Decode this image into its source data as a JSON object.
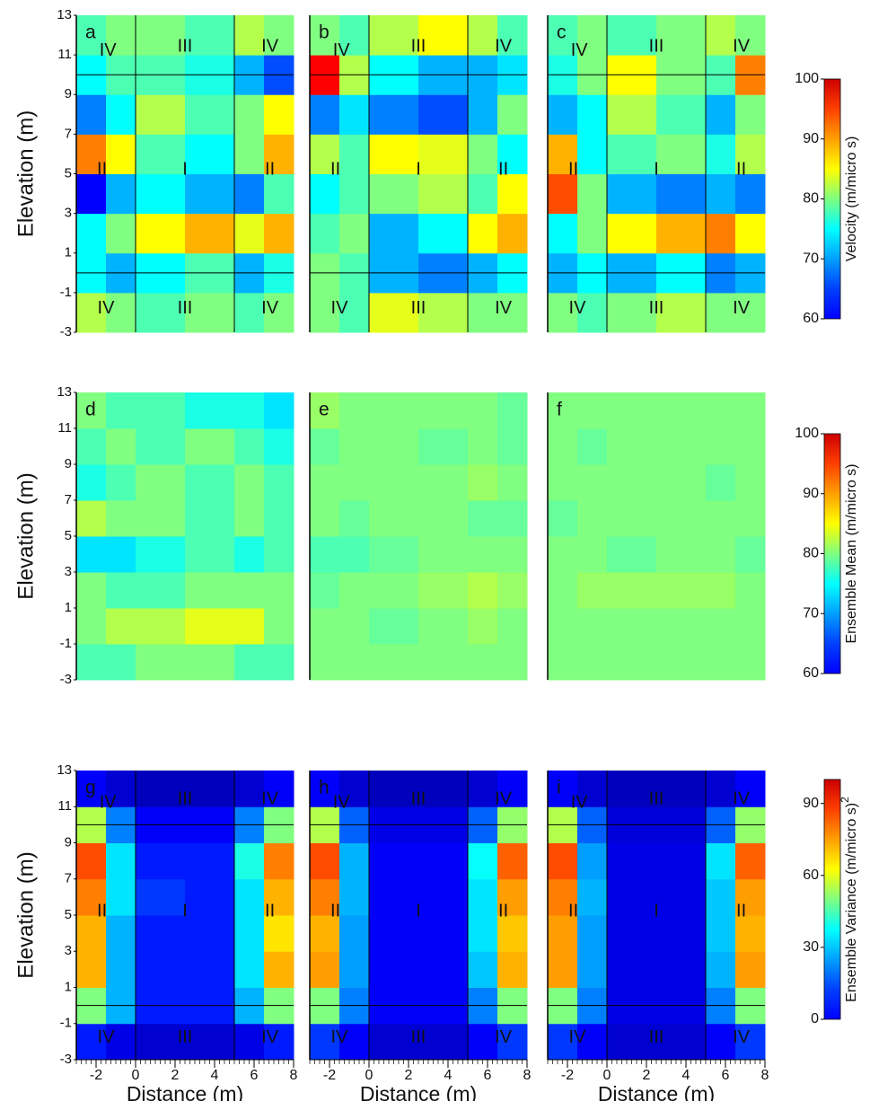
{
  "chart_data": [
    {
      "type": "heatmap",
      "ylabel": "Elevation (m)",
      "xlim": [
        -3,
        8
      ],
      "ylim": [
        -3,
        13
      ],
      "yticks": [
        -3,
        -1,
        1,
        3,
        5,
        7,
        9,
        11,
        13
      ],
      "x_edges": [
        -3,
        -1.5,
        0,
        2.5,
        5,
        6.5,
        8
      ],
      "y_edges": [
        -3,
        -1,
        1,
        3,
        5,
        7,
        9,
        11,
        13
      ],
      "zone_lines": {
        "x": [
          0,
          5
        ],
        "y": [
          0,
          10
        ]
      },
      "zone_labels": [
        {
          "text": "IV",
          "x": -1.4,
          "y": 11.2
        },
        {
          "text": "III",
          "x": 2.5,
          "y": 11.4
        },
        {
          "text": "IV",
          "x": 6.8,
          "y": 11.4
        },
        {
          "text": "II",
          "x": -1.7,
          "y": 5.2
        },
        {
          "text": "I",
          "x": 2.5,
          "y": 5.2
        },
        {
          "text": "II",
          "x": 6.8,
          "y": 5.2
        },
        {
          "text": "IV",
          "x": -1.5,
          "y": -1.8
        },
        {
          "text": "III",
          "x": 2.5,
          "y": -1.8
        },
        {
          "text": "IV",
          "x": 6.8,
          "y": -1.8
        }
      ],
      "colorbar": {
        "label": "Velocity (m/micro s)",
        "lim": [
          60,
          100
        ],
        "ticks": [
          60,
          70,
          80,
          90,
          100
        ]
      },
      "panels": [
        {
          "label": "a",
          "z": [
            [
              82,
              80,
              78,
              80,
              78,
              80
            ],
            [
              75,
              72,
              75,
              78,
              72,
              76
            ],
            [
              75,
              80,
              85,
              88,
              84,
              88
            ],
            [
              65,
              72,
              75,
              72,
              70,
              78
            ],
            [
              90,
              85,
              78,
              75,
              80,
              88
            ],
            [
              70,
              75,
              82,
              78,
              80,
              85
            ],
            [
              75,
              78,
              78,
              76,
              72,
              68
            ],
            [
              78,
              80,
              80,
              78,
              82,
              80
            ]
          ]
        },
        {
          "label": "b",
          "z": [
            [
              80,
              78,
              84,
              82,
              80,
              80
            ],
            [
              80,
              78,
              72,
              70,
              72,
              75
            ],
            [
              78,
              80,
              72,
              75,
              85,
              88
            ],
            [
              75,
              78,
              80,
              82,
              78,
              85
            ],
            [
              82,
              78,
              85,
              84,
              80,
              75
            ],
            [
              70,
              74,
              70,
              68,
              72,
              80
            ],
            [
              95,
              82,
              75,
              72,
              72,
              74
            ],
            [
              80,
              78,
              82,
              85,
              82,
              78
            ]
          ]
        },
        {
          "label": "c",
          "z": [
            [
              80,
              78,
              80,
              82,
              80,
              80
            ],
            [
              72,
              75,
              72,
              75,
              70,
              72
            ],
            [
              75,
              80,
              85,
              88,
              90,
              85
            ],
            [
              92,
              80,
              72,
              70,
              72,
              70
            ],
            [
              88,
              75,
              78,
              80,
              76,
              82
            ],
            [
              72,
              75,
              82,
              78,
              72,
              80
            ],
            [
              76,
              80,
              85,
              80,
              78,
              90
            ],
            [
              78,
              80,
              78,
              80,
              82,
              80
            ]
          ]
        }
      ]
    },
    {
      "type": "heatmap",
      "ylabel": "Elevation (m)",
      "xlim": [
        -3,
        8
      ],
      "ylim": [
        -3,
        13
      ],
      "yticks": [
        -3,
        -1,
        1,
        3,
        5,
        7,
        9,
        11,
        13
      ],
      "x_edges": [
        -3,
        -1.5,
        0,
        2.5,
        5,
        6.5,
        8
      ],
      "y_edges": [
        -3,
        -1,
        1,
        3,
        5,
        7,
        9,
        11,
        13
      ],
      "colorbar": {
        "label": "Ensemble Mean (m/micro s)",
        "lim": [
          60,
          100
        ],
        "ticks": [
          60,
          70,
          80,
          90,
          100
        ]
      },
      "panels": [
        {
          "label": "d",
          "z": [
            [
              78,
              78,
              80,
              80,
              78,
              78
            ],
            [
              80,
              82,
              82,
              84,
              84,
              80
            ],
            [
              80,
              78,
              78,
              80,
              80,
              80
            ],
            [
              74,
              74,
              76,
              78,
              76,
              78
            ],
            [
              82,
              80,
              80,
              78,
              80,
              78
            ],
            [
              76,
              78,
              80,
              78,
              80,
              78
            ],
            [
              78,
              80,
              78,
              80,
              78,
              76
            ],
            [
              80,
              78,
              78,
              76,
              76,
              74
            ]
          ]
        },
        {
          "label": "e",
          "z": [
            [
              80,
              80,
              80,
              80,
              80,
              80
            ],
            [
              80,
              80,
              79,
              80,
              81,
              80
            ],
            [
              79,
              80,
              80,
              81,
              82,
              81
            ],
            [
              78,
              78,
              79,
              80,
              80,
              80
            ],
            [
              80,
              79,
              80,
              80,
              79,
              79
            ],
            [
              80,
              80,
              80,
              80,
              81,
              80
            ],
            [
              79,
              80,
              80,
              79,
              80,
              79
            ],
            [
              81,
              80,
              80,
              80,
              80,
              79
            ]
          ]
        },
        {
          "label": "f",
          "z": [
            [
              80,
              80,
              80,
              80,
              80,
              80
            ],
            [
              80,
              80,
              80,
              80,
              80,
              80
            ],
            [
              80,
              81,
              81,
              81,
              81,
              80
            ],
            [
              80,
              80,
              79,
              80,
              80,
              79
            ],
            [
              79,
              80,
              80,
              80,
              80,
              80
            ],
            [
              80,
              80,
              80,
              80,
              79,
              80
            ],
            [
              80,
              79,
              80,
              80,
              80,
              80
            ],
            [
              80,
              80,
              80,
              80,
              80,
              80
            ]
          ]
        }
      ]
    },
    {
      "type": "heatmap",
      "ylabel": "Elevation (m)",
      "xlabel": "Distance (m)",
      "xlim": [
        -3,
        8
      ],
      "ylim": [
        -3,
        13
      ],
      "xticks": [
        -2,
        0,
        2,
        4,
        6,
        8
      ],
      "yticks": [
        -3,
        -1,
        1,
        3,
        5,
        7,
        9,
        11,
        13
      ],
      "x_edges": [
        -3,
        -1.5,
        0,
        2.5,
        5,
        6.5,
        8
      ],
      "y_edges": [
        -3,
        -1,
        1,
        3,
        5,
        7,
        9,
        11,
        13
      ],
      "zone_lines": {
        "x": [
          0,
          5
        ],
        "y": [
          0,
          10
        ]
      },
      "zone_labels": [
        {
          "text": "IV",
          "x": -1.4,
          "y": 11.2
        },
        {
          "text": "III",
          "x": 2.5,
          "y": 11.4
        },
        {
          "text": "IV",
          "x": 6.8,
          "y": 11.4
        },
        {
          "text": "II",
          "x": -1.7,
          "y": 5.2
        },
        {
          "text": "I",
          "x": 2.5,
          "y": 5.2
        },
        {
          "text": "II",
          "x": 6.8,
          "y": 5.2
        },
        {
          "text": "IV",
          "x": -1.5,
          "y": -1.8
        },
        {
          "text": "III",
          "x": 2.5,
          "y": -1.8
        },
        {
          "text": "IV",
          "x": 6.8,
          "y": -1.8
        }
      ],
      "colorbar": {
        "label": "Ensemble Variance (m/micro s)",
        "label_exponent": "2",
        "lim": [
          0,
          100
        ],
        "ticks": [
          0,
          30,
          60,
          90
        ]
      },
      "panels": [
        {
          "label": "g",
          "z": [
            [
              15,
              10,
              8,
              8,
              10,
              15
            ],
            [
              50,
              30,
              15,
              15,
              30,
              50
            ],
            [
              70,
              30,
              15,
              15,
              35,
              70
            ],
            [
              70,
              30,
              15,
              15,
              35,
              65
            ],
            [
              75,
              35,
              18,
              15,
              35,
              70
            ],
            [
              80,
              35,
              15,
              15,
              40,
              75
            ],
            [
              55,
              25,
              12,
              12,
              25,
              50
            ],
            [
              12,
              8,
              6,
              6,
              8,
              12
            ]
          ]
        },
        {
          "label": "h",
          "z": [
            [
              18,
              12,
              8,
              8,
              12,
              18
            ],
            [
              50,
              25,
              12,
              12,
              25,
              50
            ],
            [
              72,
              28,
              12,
              12,
              32,
              70
            ],
            [
              70,
              28,
              12,
              12,
              35,
              68
            ],
            [
              75,
              30,
              12,
              12,
              35,
              72
            ],
            [
              80,
              30,
              12,
              12,
              38,
              78
            ],
            [
              55,
              22,
              10,
              10,
              22,
              52
            ],
            [
              12,
              8,
              6,
              6,
              8,
              12
            ]
          ]
        },
        {
          "label": "i",
          "z": [
            [
              18,
              12,
              8,
              8,
              12,
              18
            ],
            [
              50,
              25,
              10,
              10,
              25,
              50
            ],
            [
              72,
              28,
              10,
              10,
              30,
              72
            ],
            [
              72,
              28,
              10,
              10,
              32,
              70
            ],
            [
              75,
              30,
              10,
              10,
              32,
              72
            ],
            [
              80,
              28,
              10,
              10,
              35,
              78
            ],
            [
              55,
              22,
              9,
              9,
              22,
              52
            ],
            [
              12,
              8,
              6,
              6,
              8,
              12
            ]
          ]
        }
      ]
    }
  ]
}
